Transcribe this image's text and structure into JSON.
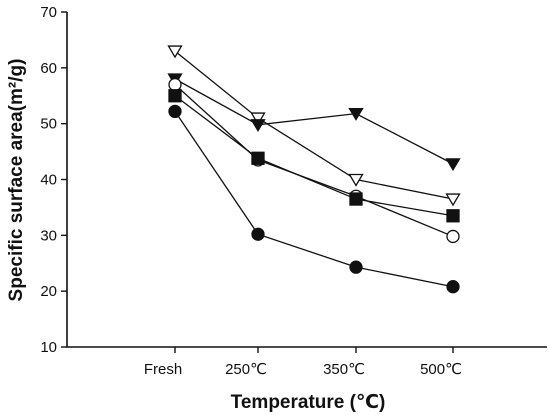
{
  "chart_data": {
    "type": "line",
    "title": "",
    "xlabel": "Temperature (℃)",
    "ylabel": "Specific surface area(m²/g)",
    "categories": [
      "Fresh",
      "250℃",
      "350℃",
      "500℃"
    ],
    "ylim": [
      10,
      70
    ],
    "yticks": [
      10,
      20,
      30,
      40,
      50,
      60,
      70
    ],
    "grid": false,
    "legend": "none",
    "series": [
      {
        "marker": "triangle-down-open",
        "values": [
          63,
          51,
          40,
          36.5
        ]
      },
      {
        "marker": "triangle-down-filled",
        "values": [
          58,
          49.8,
          51.8,
          42.8
        ]
      },
      {
        "marker": "circle-open",
        "values": [
          57,
          43.5,
          37,
          29.8
        ]
      },
      {
        "marker": "square-filled",
        "values": [
          55,
          43.8,
          36.5,
          33.5
        ]
      },
      {
        "marker": "circle-filled",
        "values": [
          52.2,
          30.2,
          24.3,
          20.8
        ]
      }
    ],
    "colors": {
      "ink": "#111111",
      "background": "#ffffff"
    }
  }
}
